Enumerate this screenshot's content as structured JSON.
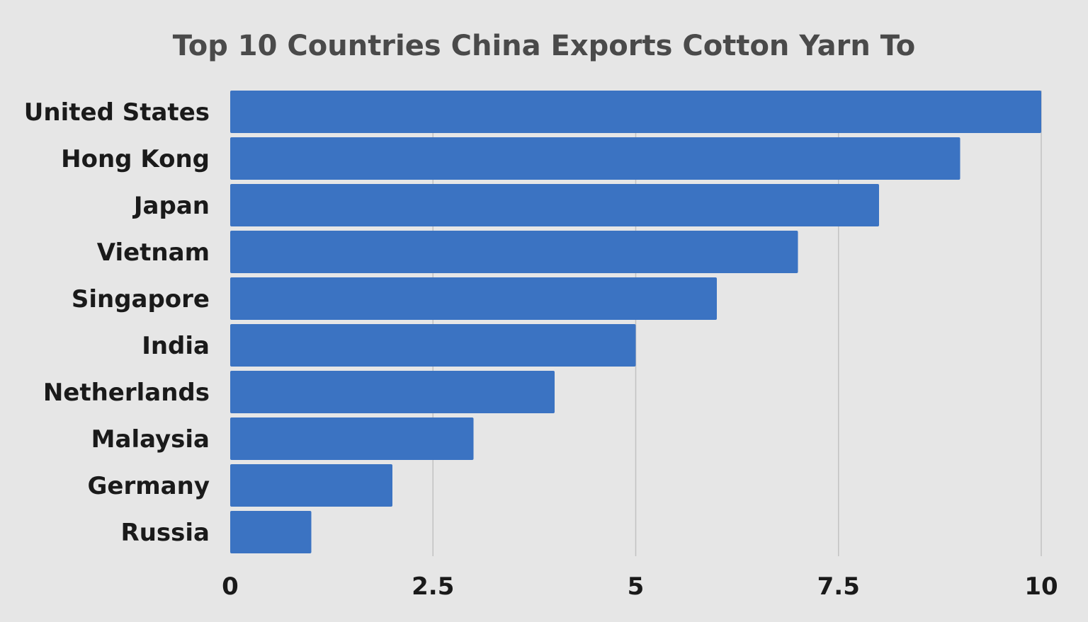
{
  "chart_data": {
    "type": "bar",
    "orientation": "horizontal",
    "title": "Top 10 Countries China Exports Cotton Yarn To",
    "xlabel": "",
    "ylabel": "",
    "categories": [
      "United States",
      "Hong Kong",
      "Japan",
      "Vietnam",
      "Singapore",
      "India",
      "Netherlands",
      "Malaysia",
      "Germany",
      "Russia"
    ],
    "values": [
      10,
      9,
      8,
      7,
      6,
      5,
      4,
      3,
      2,
      1
    ],
    "xlim": [
      0,
      10
    ],
    "xticks": [
      0,
      2.5,
      5,
      7.5,
      10
    ],
    "xtick_labels": [
      "0",
      "2.5",
      "5",
      "7.5",
      "10"
    ],
    "grid": true,
    "legend": false,
    "bar_color": "#3b73c2",
    "background_color": "#e6e6e6"
  }
}
